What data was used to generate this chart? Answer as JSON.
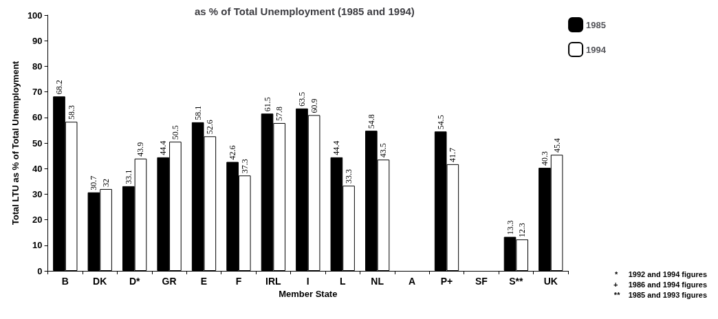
{
  "chart_data": {
    "type": "bar",
    "title": "as % of Total Unemployment (1985 and 1994)",
    "xlabel": "Member State",
    "ylabel": "Total LTU as % of Total Unemployment",
    "categories": [
      "B",
      "DK",
      "D*",
      "GR",
      "E",
      "F",
      "IRL",
      "I",
      "L",
      "NL",
      "A",
      "P+",
      "SF",
      "S**",
      "UK"
    ],
    "series": [
      {
        "name": "1985",
        "color": "#000000",
        "values": [
          68.2,
          30.7,
          33.1,
          44.4,
          58.1,
          42.6,
          61.5,
          63.5,
          44.4,
          54.8,
          null,
          54.5,
          null,
          13.3,
          40.3
        ]
      },
      {
        "name": "1994",
        "color": "#ffffff",
        "values": [
          58.3,
          32,
          43.9,
          50.5,
          52.6,
          37.3,
          57.8,
          60.9,
          33.3,
          43.5,
          null,
          41.7,
          null,
          12.3,
          45.4
        ]
      }
    ],
    "ylim": [
      0,
      100
    ],
    "yticks": [
      0,
      10,
      20,
      30,
      40,
      50,
      60,
      70,
      80,
      90,
      100
    ],
    "grid": false,
    "legend": "top right",
    "data_labels": true,
    "annotations": [
      "*     1992 and 1994 figures",
      "+     1986 and 1994 figures",
      "**    1985 and 1993 figures"
    ]
  }
}
